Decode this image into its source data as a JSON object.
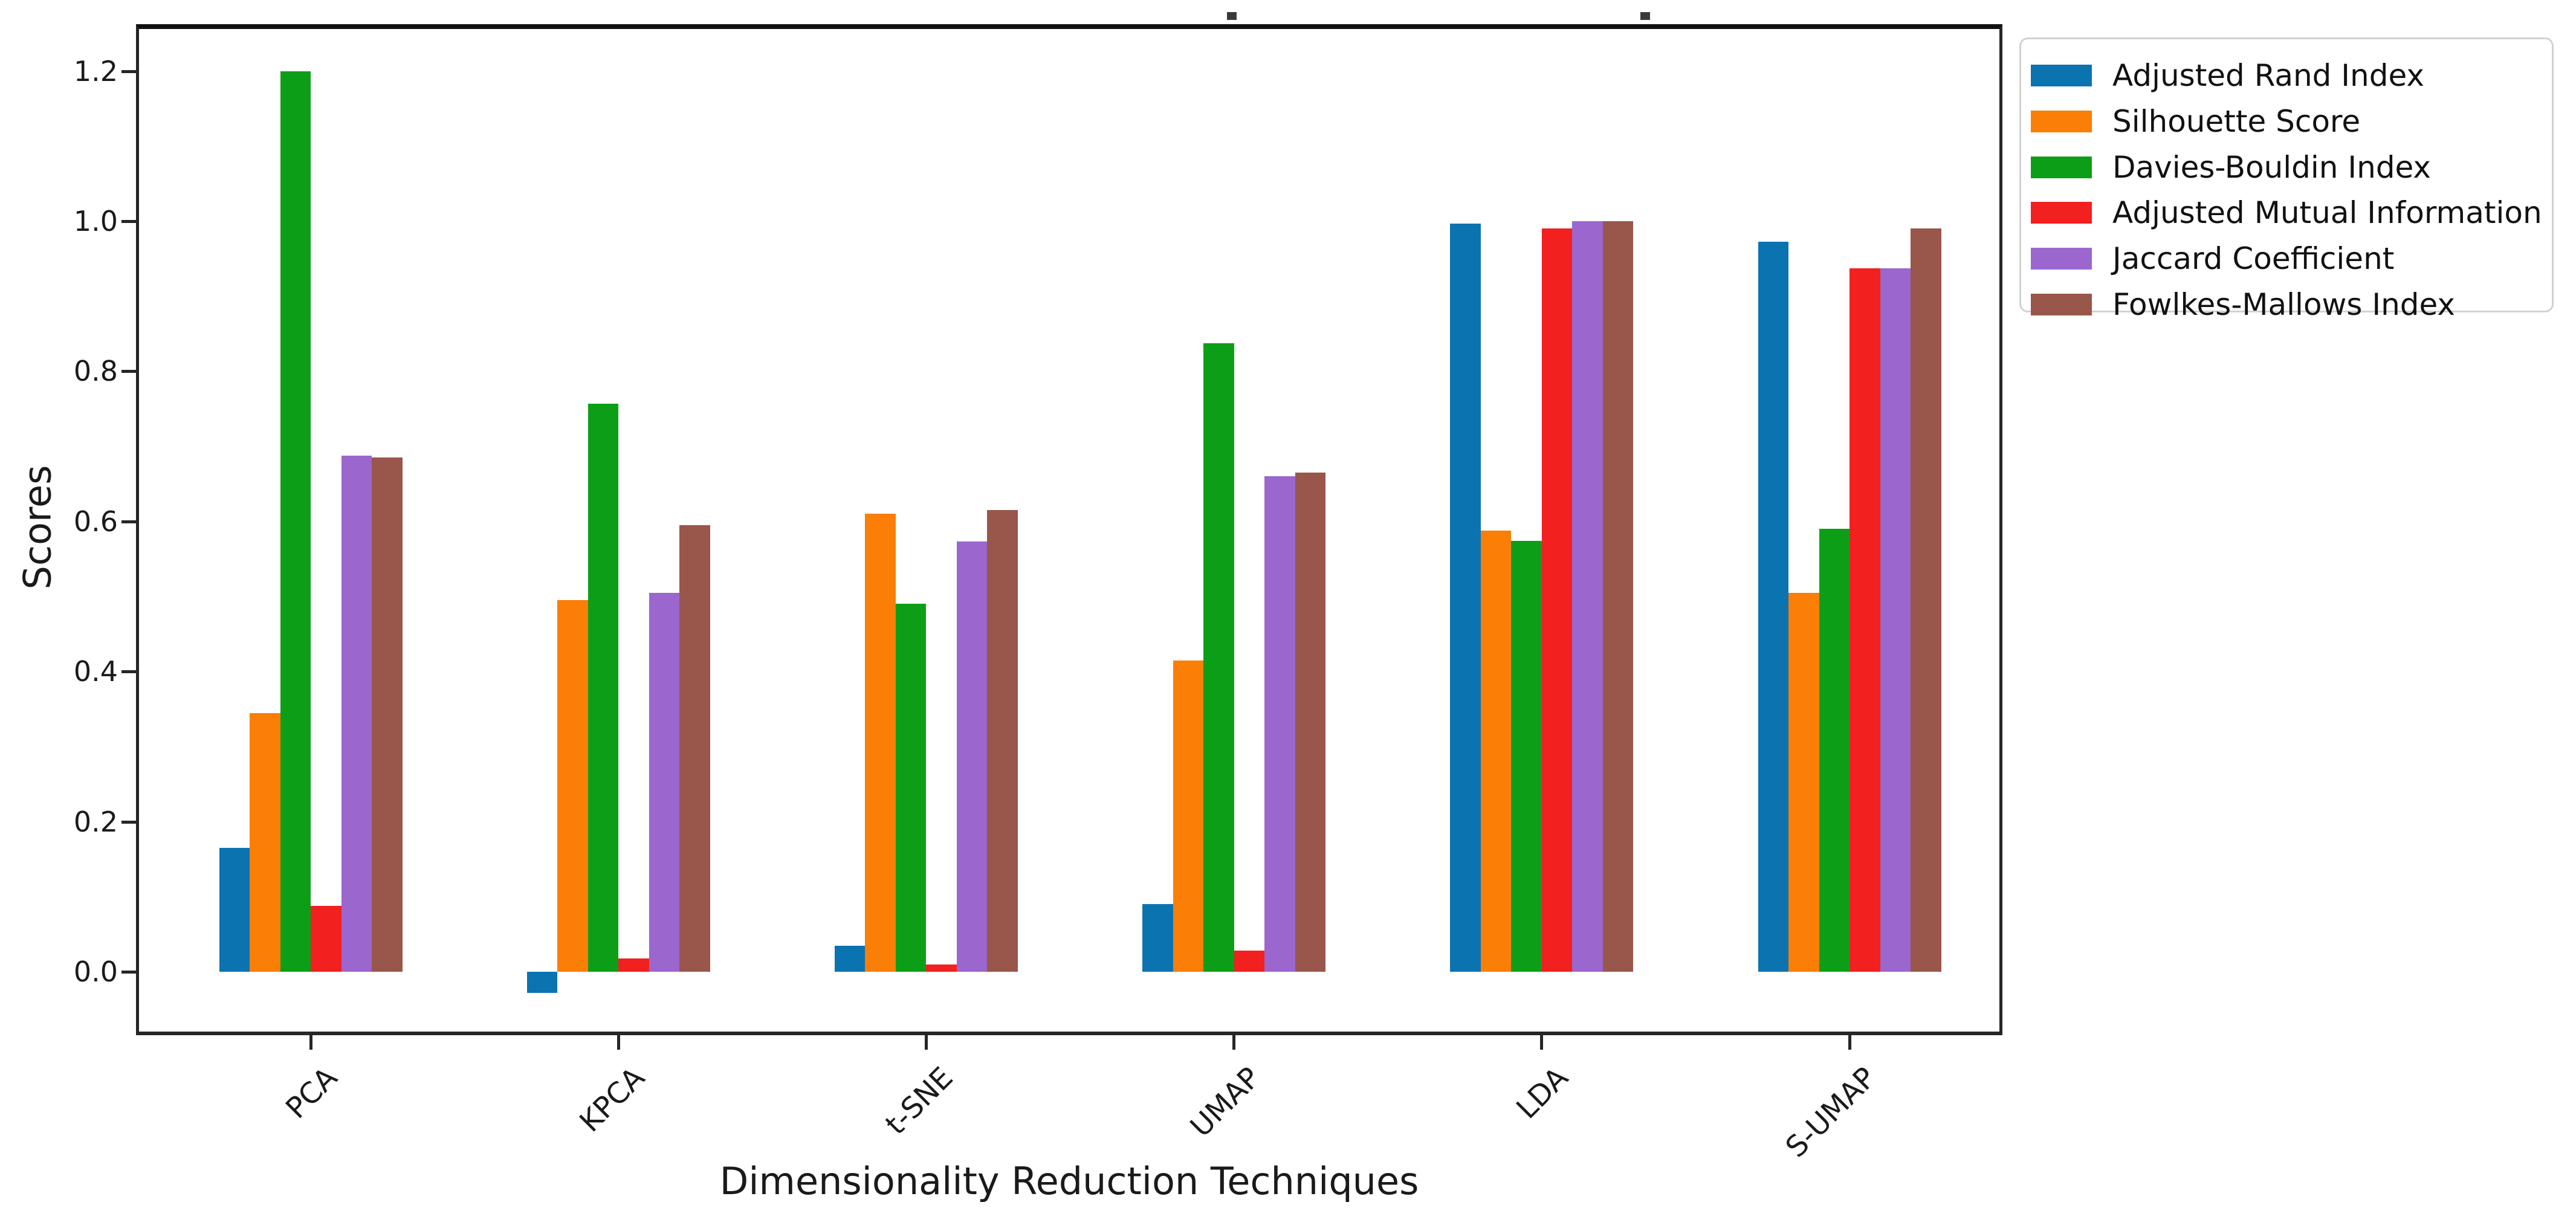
{
  "chart_data": {
    "type": "bar",
    "title": "",
    "xlabel": "Dimensionality Reduction Techniques",
    "ylabel": "Scores",
    "categories": [
      "PCA",
      "KPCA",
      "t-SNE",
      "UMAP",
      "LDA",
      "S-UMAP"
    ],
    "series": [
      {
        "name": "Adjusted Rand Index",
        "color": "#0c73b1",
        "values": [
          0.165,
          -0.028,
          0.035,
          0.09,
          0.997,
          0.973
        ]
      },
      {
        "name": "Silhouette Score",
        "color": "#fb7e06",
        "values": [
          0.345,
          0.495,
          0.61,
          0.415,
          0.588,
          0.505
        ]
      },
      {
        "name": "Davies-Bouldin Index",
        "color": "#0d9e18",
        "values": [
          1.2,
          0.757,
          0.49,
          0.837,
          0.574,
          0.59
        ]
      },
      {
        "name": "Adjusted Mutual Information",
        "color": "#f2201e",
        "values": [
          0.088,
          0.018,
          0.01,
          0.028,
          0.99,
          0.937
        ]
      },
      {
        "name": "Jaccard Coefficient",
        "color": "#9b66cd",
        "values": [
          0.688,
          0.505,
          0.573,
          0.66,
          1.0,
          0.937
        ]
      },
      {
        "name": "Fowlkes-Mallows Index",
        "color": "#99564b",
        "values": [
          0.685,
          0.595,
          0.615,
          0.665,
          1.0,
          0.99
        ]
      }
    ],
    "yticks": [
      "0.0",
      "0.2",
      "0.4",
      "0.6",
      "0.8",
      "1.0",
      "1.2"
    ],
    "ytick_values": [
      0.0,
      0.2,
      0.4,
      0.6,
      0.8,
      1.0,
      1.2
    ],
    "ylim": [
      -0.085,
      1.26
    ],
    "grid": false,
    "legend_position": "outside-upper-right"
  }
}
